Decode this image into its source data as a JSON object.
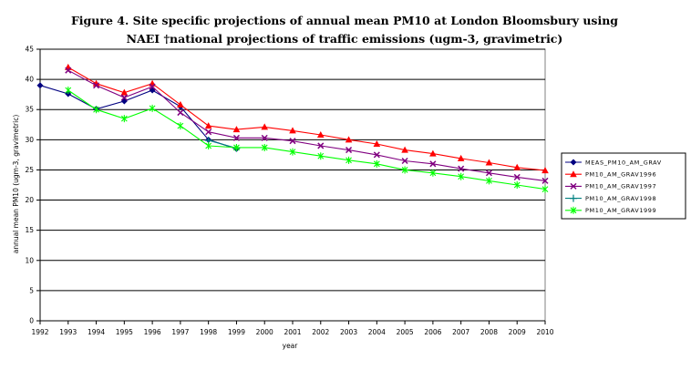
{
  "chart_data": {
    "type": "line",
    "title_lines": [
      "Figure 4. Site specific projections of annual mean PM10 at London Bloomsbury using",
      "NAEI †national projections of traffic emissions (ugm-3, gravimetric)"
    ],
    "xlabel": "year",
    "ylabel": "annual mean PM10 (ugm-3, gravimetric)",
    "x": [
      1992,
      1993,
      1994,
      1995,
      1996,
      1997,
      1998,
      1999,
      2000,
      2001,
      2002,
      2003,
      2004,
      2005,
      2006,
      2007,
      2008,
      2009,
      2010
    ],
    "xlim": [
      1992,
      2010
    ],
    "ylim": [
      0,
      45
    ],
    "yticks": [
      0,
      5,
      10,
      15,
      20,
      25,
      30,
      35,
      40,
      45
    ],
    "grid": "horizontal",
    "legend_position": "right",
    "series": [
      {
        "name": "MEAS_PM10_AM_GRAV",
        "color": "#000080",
        "marker": "diamond",
        "values": [
          39,
          37.6,
          35.1,
          36.4,
          38.2,
          35.5,
          30,
          28.5,
          null,
          null,
          null,
          null,
          null,
          null,
          null,
          null,
          null,
          null,
          null
        ]
      },
      {
        "name": "PM10_AM_GRAV1996",
        "color": "#ff0000",
        "marker": "triangle",
        "values": [
          null,
          42,
          39.3,
          37.8,
          39.3,
          35.8,
          32.3,
          31.7,
          32.1,
          31.5,
          30.8,
          30,
          29.3,
          28.3,
          27.7,
          26.9,
          26.2,
          25.4,
          24.9
        ]
      },
      {
        "name": "PM10_AM_GRAV1997",
        "color": "#800080",
        "marker": "x",
        "values": [
          null,
          41.5,
          39,
          37,
          38.8,
          34.5,
          31.3,
          30.3,
          30.3,
          29.8,
          29,
          28.3,
          27.5,
          26.5,
          26,
          25.2,
          24.5,
          23.8,
          23.2
        ]
      },
      {
        "name": "PM10_AM_GRAV1998",
        "color": "#008080",
        "marker": "plus",
        "values": [
          null,
          null,
          null,
          null,
          null,
          null,
          29.9,
          28.6,
          null,
          null,
          null,
          null,
          null,
          null,
          null,
          null,
          null,
          null,
          null
        ]
      },
      {
        "name": "PM10_AM_GRAV1999",
        "color": "#00ff00",
        "marker": "star",
        "values": [
          null,
          38.2,
          35,
          33.5,
          35.2,
          32.3,
          29,
          28.7,
          28.7,
          28,
          27.3,
          26.6,
          26,
          25,
          24.5,
          23.9,
          23.2,
          22.5,
          21.8
        ]
      }
    ]
  }
}
